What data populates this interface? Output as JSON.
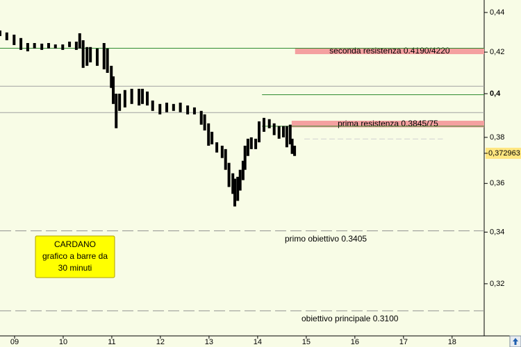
{
  "chart_data": {
    "type": "hilo",
    "log_scale": true,
    "color": "#000000",
    "xlim": [
      8.7,
      18.66
    ],
    "ylim": [
      0.301,
      0.4465
    ],
    "xticks": [
      {
        "value": 9,
        "label": "09"
      },
      10,
      11,
      12,
      13,
      14,
      15,
      16,
      17,
      18
    ],
    "yticks": [
      {
        "value": 0.32,
        "label": "0,32"
      },
      {
        "value": 0.34,
        "label": "0,34"
      },
      {
        "value": 0.36,
        "label": "0,36"
      },
      {
        "value": 0.38,
        "label": "0,38"
      },
      {
        "value": 0.4,
        "label": "0,4",
        "bold": true
      },
      {
        "value": 0.42,
        "label": "0,42"
      },
      {
        "value": 0.44,
        "label": "0,44"
      }
    ],
    "x": [
      8.7,
      8.84,
      8.99,
      9.13,
      9.27,
      9.41,
      9.56,
      9.7,
      9.84,
      9.99,
      10.13,
      10.27,
      10.34,
      10.41,
      10.49,
      10.56,
      10.7,
      10.84,
      10.91,
      10.99,
      11.03,
      11.09,
      11.16,
      11.27,
      11.41,
      11.56,
      11.63,
      11.73,
      11.84,
      11.99,
      12.13,
      12.27,
      12.41,
      12.56,
      12.7,
      12.84,
      12.91,
      12.99,
      13.06,
      13.16,
      13.27,
      13.34,
      13.41,
      13.49,
      13.53,
      13.59,
      13.64,
      13.7,
      13.74,
      13.8,
      13.87,
      13.96,
      14.03,
      14.13,
      14.24,
      14.34,
      14.44,
      14.53,
      14.6,
      14.67,
      14.71,
      14.76
    ],
    "high": [
      0.4308,
      0.4298,
      0.4287,
      0.427,
      0.4245,
      0.4245,
      0.4242,
      0.4245,
      0.4238,
      0.4238,
      0.4252,
      0.4252,
      0.4294,
      0.4259,
      0.4225,
      0.4225,
      0.4218,
      0.4245,
      0.4218,
      0.4133,
      0.4082,
      0.4,
      0.4,
      0.4017,
      0.4023,
      0.4023,
      0.4023,
      0.401,
      0.3968,
      0.3952,
      0.3958,
      0.3952,
      0.3958,
      0.3945,
      0.3936,
      0.392,
      0.3904,
      0.3863,
      0.3825,
      0.3778,
      0.3763,
      0.3748,
      0.3688,
      0.3643,
      0.362,
      0.3628,
      0.3658,
      0.3697,
      0.3763,
      0.3794,
      0.38,
      0.3794,
      0.3872,
      0.3888,
      0.3882,
      0.3863,
      0.3851,
      0.3851,
      0.3851,
      0.3857,
      0.3794,
      0.3763
    ],
    "low": [
      0.428,
      0.4259,
      0.4235,
      0.4211,
      0.4204,
      0.4218,
      0.4211,
      0.4218,
      0.4218,
      0.4211,
      0.4225,
      0.4211,
      0.4218,
      0.4123,
      0.4133,
      0.415,
      0.4133,
      0.4116,
      0.4099,
      0.4027,
      0.3952,
      0.3841,
      0.392,
      0.3936,
      0.3952,
      0.3945,
      0.3952,
      0.3945,
      0.392,
      0.3904,
      0.3914,
      0.392,
      0.3914,
      0.3904,
      0.3904,
      0.3857,
      0.3831,
      0.3763,
      0.3769,
      0.3733,
      0.3709,
      0.3658,
      0.3585,
      0.3556,
      0.3504,
      0.3527,
      0.357,
      0.3614,
      0.3658,
      0.3718,
      0.3748,
      0.3748,
      0.3778,
      0.3825,
      0.3841,
      0.381,
      0.3794,
      0.38,
      0.3756,
      0.3769,
      0.3727,
      0.3718
    ],
    "current_price": {
      "value": 0.372963,
      "label": "0,372963"
    },
    "lines": [
      {
        "value": 0.4219,
        "color": "#2e8b2e"
      },
      {
        "value": 0.4035,
        "color": "#a0a0a0"
      },
      {
        "value": 0.3912,
        "color": "#a0a0a0"
      },
      {
        "value": 0.3995,
        "color": "#2e8b2e",
        "from_x": 14.09
      },
      {
        "value": 0.385,
        "color": "#2e8b2e",
        "from_x": 14.09
      },
      {
        "value": 0.3793,
        "color": "#d0d0d0",
        "from_x": 14.96,
        "to_x": 17.81,
        "dashed": true
      }
    ],
    "bands": [
      {
        "label": "seconda resistenza 0.4190/4220",
        "low": 0.419,
        "high": 0.422,
        "from_x": 14.77,
        "color": "#f4a0a0"
      },
      {
        "label": "prima resistenza 0.3845/75",
        "low": 0.3845,
        "high": 0.3875,
        "from_x": 14.7,
        "color": "#f4a0a0"
      }
    ],
    "levels": [
      {
        "label": "primo obiettivo 0.3405",
        "value": 0.3405,
        "color": "#909090"
      },
      {
        "label": "obiettivo principale 0.3100",
        "value": 0.31,
        "color": "#909090"
      }
    ],
    "note": [
      "CARDANO",
      "grafico a barre da",
      "30 minuti"
    ]
  }
}
